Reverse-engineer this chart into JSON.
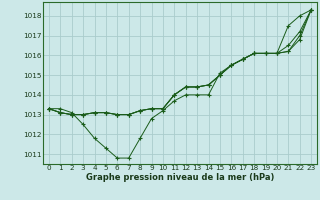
{
  "title": "Graphe pression niveau de la mer (hPa)",
  "bg_color": "#cce8e8",
  "grid_color": "#aacccc",
  "line_color": "#1a5c1a",
  "xlim": [
    -0.5,
    23.5
  ],
  "ylim": [
    1010.5,
    1018.7
  ],
  "yticks": [
    1011,
    1012,
    1013,
    1014,
    1015,
    1016,
    1017,
    1018
  ],
  "xticks": [
    0,
    1,
    2,
    3,
    4,
    5,
    6,
    7,
    8,
    9,
    10,
    11,
    12,
    13,
    14,
    15,
    16,
    17,
    18,
    19,
    20,
    21,
    22,
    23
  ],
  "series": [
    [
      1013.3,
      1013.3,
      1013.1,
      1012.5,
      1011.8,
      1011.3,
      1010.8,
      1010.8,
      1011.8,
      1012.8,
      1013.2,
      1013.7,
      1014.0,
      1014.0,
      1014.0,
      1015.1,
      1015.5,
      1015.8,
      1016.1,
      1016.1,
      1016.1,
      1017.5,
      1018.0,
      1018.3
    ],
    [
      1013.3,
      1013.1,
      1013.0,
      1013.0,
      1013.1,
      1013.1,
      1013.0,
      1013.0,
      1013.2,
      1013.3,
      1013.3,
      1014.0,
      1014.4,
      1014.4,
      1014.5,
      1015.0,
      1015.5,
      1015.8,
      1016.1,
      1016.1,
      1016.1,
      1016.2,
      1017.0,
      1018.3
    ],
    [
      1013.3,
      1013.1,
      1013.0,
      1013.0,
      1013.1,
      1013.1,
      1013.0,
      1013.0,
      1013.2,
      1013.3,
      1013.3,
      1014.0,
      1014.4,
      1014.4,
      1014.5,
      1015.0,
      1015.5,
      1015.8,
      1016.1,
      1016.1,
      1016.1,
      1016.5,
      1017.2,
      1018.3
    ],
    [
      1013.3,
      1013.1,
      1013.0,
      1013.0,
      1013.1,
      1013.1,
      1013.0,
      1013.0,
      1013.2,
      1013.3,
      1013.3,
      1014.0,
      1014.4,
      1014.4,
      1014.5,
      1015.0,
      1015.5,
      1015.8,
      1016.1,
      1016.1,
      1016.1,
      1016.2,
      1016.8,
      1018.3
    ]
  ],
  "tick_fontsize": 5.2,
  "label_fontsize": 6.0,
  "label_color": "#1a3a1a",
  "spine_color": "#2a6a2a"
}
